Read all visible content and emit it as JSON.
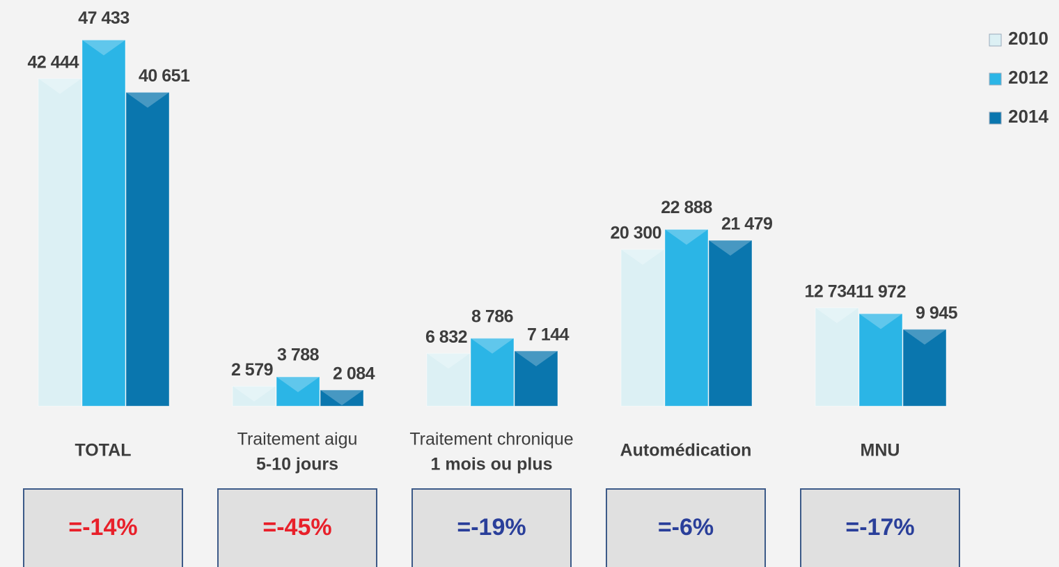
{
  "chart_data": {
    "type": "bar",
    "categories": [
      [
        "TOTAL"
      ],
      [
        "Traitement aigu",
        "5-10 jours"
      ],
      [
        "Traitement chronique",
        "1 mois ou plus"
      ],
      [
        "Automédication"
      ],
      [
        "MNU"
      ]
    ],
    "series": [
      {
        "name": "2010",
        "color": "#dcf0f4",
        "values": [
          42444,
          2579,
          6832,
          20300,
          12734
        ],
        "value_labels": [
          "42 444",
          "2 579",
          "6 832",
          "20 300",
          "12 734"
        ]
      },
      {
        "name": "2012",
        "color": "#2bb5e6",
        "values": [
          47433,
          3788,
          8786,
          22888,
          11972
        ],
        "value_labels": [
          "47 433",
          "3 788",
          "8 786",
          "22 888",
          "11 972"
        ]
      },
      {
        "name": "2014",
        "color": "#0a76ae",
        "values": [
          40651,
          2084,
          7144,
          21479,
          9945
        ],
        "value_labels": [
          "40 651",
          "2 084",
          "7 144",
          "21 479",
          "9 945"
        ]
      }
    ],
    "ylim": [
      0,
      50000
    ],
    "legend": "top-right",
    "annotations": [
      {
        "text": "=-14%",
        "color": "#e8202a"
      },
      {
        "text": "=-45%",
        "color": "#e8202a"
      },
      {
        "text": "=-19%",
        "color": "#2a3f9a"
      },
      {
        "text": "=-6%",
        "color": "#2a3f9a"
      },
      {
        "text": "=-17%",
        "color": "#2a3f9a"
      }
    ]
  }
}
